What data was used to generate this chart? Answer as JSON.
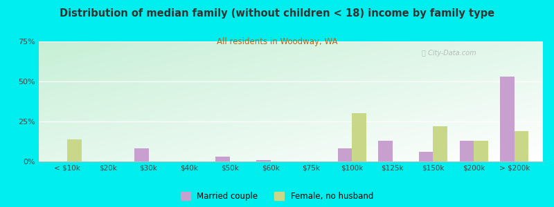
{
  "title": "Distribution of median family (without children < 18) income by family type",
  "subtitle": "All residents in Woodway, WA",
  "categories": [
    "< $10k",
    "$20k",
    "$30k",
    "$40k",
    "$50k",
    "$60k",
    "$75k",
    "$100k",
    "$125k",
    "$150k",
    "$200k",
    "> $200k"
  ],
  "married_couple": [
    0,
    0,
    8,
    0,
    3,
    1,
    0,
    8,
    13,
    6,
    13,
    53
  ],
  "female_no_husband": [
    14,
    0,
    0,
    0,
    0,
    0,
    0,
    30,
    0,
    22,
    13,
    19
  ],
  "married_color": "#c8a0d0",
  "female_color": "#c8d888",
  "title_color": "#333333",
  "subtitle_color": "#b06820",
  "background_color": "#00eeee",
  "ylim": [
    0,
    75
  ],
  "yticks": [
    0,
    25,
    50,
    75
  ],
  "ytick_labels": [
    "0%",
    "25%",
    "50%",
    "75%"
  ],
  "bar_width": 0.35,
  "legend_married": "Married couple",
  "legend_female": "Female, no husband"
}
